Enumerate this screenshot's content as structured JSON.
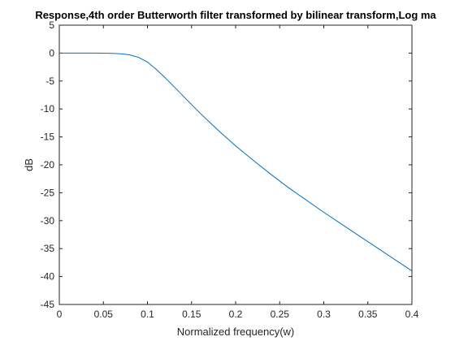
{
  "chart_data": {
    "type": "line",
    "title": "Response,4th order Butterworth filter transformed by bilinear transform,Log ma",
    "xlabel": "Normalized frequency(w)",
    "ylabel": "dB",
    "xlim": [
      0,
      0.4
    ],
    "ylim": [
      -45,
      5
    ],
    "xticks": [
      0,
      0.05,
      0.1,
      0.15,
      0.2,
      0.25,
      0.3,
      0.35,
      0.4
    ],
    "xtick_labels": [
      "0",
      "0.05",
      "0.1",
      "0.15",
      "0.2",
      "0.25",
      "0.3",
      "0.35",
      "0.4"
    ],
    "yticks": [
      5,
      0,
      -5,
      -10,
      -15,
      -20,
      -25,
      -30,
      -35,
      -40,
      -45
    ],
    "ytick_labels": [
      "5",
      "0",
      "-5",
      "-10",
      "-15",
      "-20",
      "-25",
      "-30",
      "-35",
      "-40",
      "-45"
    ],
    "grid": false,
    "line_color": "#0072bd",
    "series": [
      {
        "x": [
          0,
          0.02,
          0.04,
          0.06,
          0.07,
          0.08,
          0.09,
          0.1,
          0.11,
          0.12,
          0.13,
          0.14,
          0.15,
          0.16,
          0.17,
          0.18,
          0.19,
          0.2,
          0.22,
          0.24,
          0.26,
          0.28,
          0.3,
          0.32,
          0.34,
          0.36,
          0.38,
          0.4
        ],
        "y": [
          0,
          0,
          0,
          -0.05,
          -0.13,
          -0.32,
          -0.77,
          -1.6,
          -2.9,
          -4.4,
          -6.0,
          -7.6,
          -9.2,
          -10.8,
          -12.3,
          -13.8,
          -15.2,
          -16.6,
          -19.2,
          -21.7,
          -24.1,
          -26.3,
          -28.5,
          -30.6,
          -32.7,
          -34.8,
          -36.9,
          -39.0
        ]
      }
    ]
  }
}
